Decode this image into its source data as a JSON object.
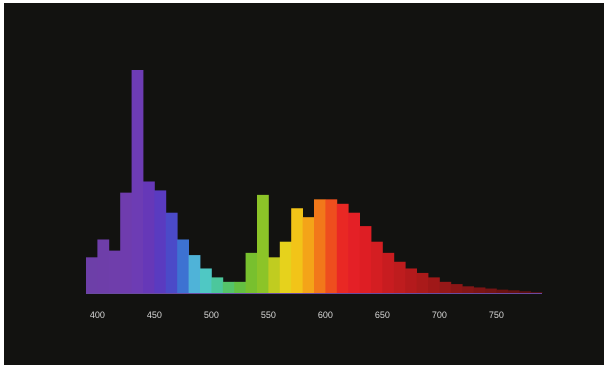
{
  "colors": {
    "frame": "#ffffff",
    "background": "#121210",
    "tick_text": "#d8d8d8"
  },
  "chart_data": {
    "type": "bar",
    "title": "",
    "xlabel": "",
    "ylabel": "",
    "grid": false,
    "legend": "none",
    "x_unit": "nm",
    "bin_width": 10,
    "xlim": [
      390,
      790
    ],
    "ylim": [
      0,
      100
    ],
    "xticks": [
      400,
      450,
      500,
      550,
      600,
      650,
      700,
      750
    ],
    "xtick_labels": [
      "400",
      "450",
      "500",
      "550",
      "600",
      "650",
      "700",
      "750"
    ],
    "x": [
      395,
      405,
      415,
      425,
      435,
      445,
      455,
      465,
      475,
      485,
      495,
      505,
      515,
      525,
      535,
      545,
      555,
      565,
      575,
      585,
      595,
      605,
      615,
      625,
      635,
      645,
      655,
      665,
      675,
      685,
      695,
      705,
      715,
      725,
      735,
      745,
      755,
      765,
      775,
      785
    ],
    "values": [
      16,
      24,
      19,
      45,
      100,
      50,
      46,
      36,
      24,
      17,
      11,
      7,
      5,
      5,
      18,
      44,
      16,
      23,
      38,
      34,
      42,
      42,
      40,
      36,
      30,
      23,
      18,
      14,
      11,
      9,
      7,
      5,
      4,
      3,
      2.5,
      2,
      1.5,
      1.2,
      0.8,
      0.4
    ],
    "bar_colors": [
      "#6d3fa8",
      "#6e3ea9",
      "#6f3eab",
      "#6f3cae",
      "#6d3cb4",
      "#6638b8",
      "#5a3bc0",
      "#4b4ac8",
      "#3d72d2",
      "#4fb3d8",
      "#4fc8c4",
      "#4cc79c",
      "#55c46a",
      "#64c042",
      "#78c02e",
      "#8cc428",
      "#c0cc20",
      "#e6d21c",
      "#f2c418",
      "#f4a418",
      "#f2781a",
      "#ee4e1e",
      "#e92824",
      "#e42026",
      "#de1e24",
      "#d41e22",
      "#c81c20",
      "#be1c1e",
      "#b41a1c",
      "#aa1a1a",
      "#a01818",
      "#961818",
      "#8c1616",
      "#841616",
      "#7c1414",
      "#741414",
      "#6c1212",
      "#641212",
      "#5c1010",
      "#541010"
    ]
  }
}
